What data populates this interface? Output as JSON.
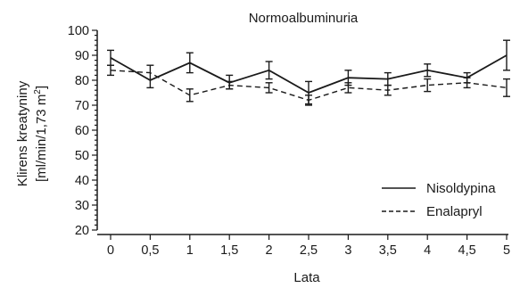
{
  "chart_data": {
    "type": "line",
    "title": "Normoalbuminuria",
    "xlabel": "Lata",
    "ylabel_line1": "Klirens kreatyniny",
    "ylabel_line2_prefix": "[ml/min/1,73 m",
    "ylabel_line2_sup": "2",
    "ylabel_line2_suffix": "]",
    "x": [
      0,
      0.5,
      1,
      1.5,
      2,
      2.5,
      3,
      3.5,
      4,
      4.5,
      5
    ],
    "x_tick_labels": [
      "0",
      "0,5",
      "1",
      "1,5",
      "2",
      "2,5",
      "3",
      "3,5",
      "4",
      "4,5",
      "5"
    ],
    "xlim": [
      0,
      5
    ],
    "ylim": [
      20,
      100
    ],
    "y_ticks": [
      20,
      30,
      40,
      50,
      60,
      70,
      80,
      90,
      100
    ],
    "y_minor_step": 2,
    "grid": false,
    "legend_position": "bottom-right",
    "series": [
      {
        "name": "Nisoldypina",
        "style": "solid",
        "color": "#1a1a1a",
        "values": [
          89,
          80,
          87,
          79,
          84,
          75,
          81,
          80.5,
          84,
          81,
          90
        ],
        "err_low": [
          3,
          3,
          4,
          2.5,
          3.5,
          4.5,
          3,
          2.5,
          2.5,
          2,
          6
        ],
        "err_high": [
          3,
          6,
          4,
          3,
          3.5,
          4.5,
          3,
          2.5,
          2.5,
          2,
          6
        ]
      },
      {
        "name": "Enalapryl",
        "style": "dashed",
        "color": "#1a1a1a",
        "values": [
          84,
          83,
          74,
          78,
          77,
          72,
          77,
          76,
          78,
          79,
          77
        ],
        "err_low": [
          2,
          0,
          2.5,
          1.5,
          2,
          2,
          2,
          2,
          2.5,
          2,
          3.5
        ],
        "err_high": [
          2,
          0,
          2.5,
          1.5,
          2,
          2,
          2,
          2,
          2.5,
          2,
          3.5
        ]
      }
    ]
  }
}
